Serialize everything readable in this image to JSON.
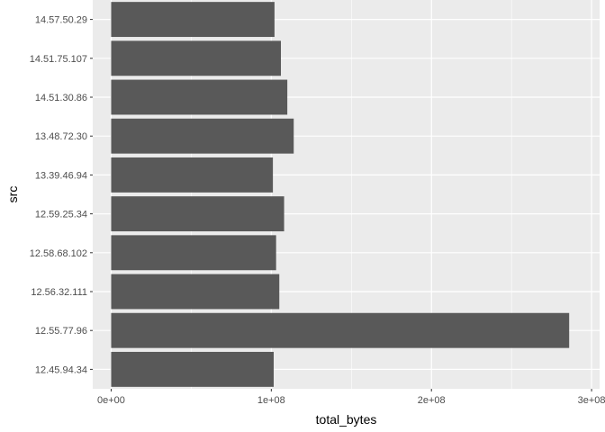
{
  "chart_data": {
    "type": "bar",
    "orientation": "horizontal",
    "categories": [
      "14.57.50.29",
      "14.51.75.107",
      "14.51.30.86",
      "13.48.72.30",
      "13.39.46.94",
      "12.59.25.34",
      "12.58.68.102",
      "12.56.32.111",
      "12.55.77.96",
      "12.45.94.34"
    ],
    "values": [
      102000000,
      106000000,
      110000000,
      114000000,
      101000000,
      108000000,
      103000000,
      105000000,
      286000000,
      101500000
    ],
    "xlabel": "total_bytes",
    "ylabel": "src",
    "xlim": [
      0,
      300000000
    ],
    "x_ticks": [
      {
        "value": 0,
        "label": "0e+00"
      },
      {
        "value": 100000000,
        "label": "1e+08"
      },
      {
        "value": 200000000,
        "label": "2e+08"
      },
      {
        "value": 300000000,
        "label": "3e+08"
      }
    ],
    "grid": true,
    "legend": "none",
    "colors": {
      "panel_background": "#ebebeb",
      "grid_major": "#ffffff",
      "bar_fill": "#595959",
      "tick_text": "#4d4d4d",
      "title_text": "#000000"
    }
  }
}
